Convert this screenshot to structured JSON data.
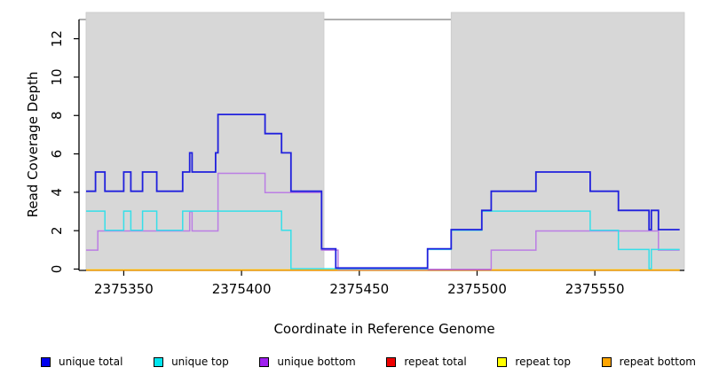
{
  "figure": {
    "ylabel": "Read Coverage Depth",
    "xlabel": "Coordinate in Reference Genome"
  },
  "legend": {
    "items": [
      {
        "label": "unique total",
        "color": "#0000ee"
      },
      {
        "label": "unique top",
        "color": "#00e5ee"
      },
      {
        "label": "unique bottom",
        "color": "#a020f0"
      },
      {
        "label": "repeat total",
        "color": "#ee0000"
      },
      {
        "label": "repeat top",
        "color": "#ffff00"
      },
      {
        "label": "repeat bottom",
        "color": "#ffa500"
      }
    ]
  },
  "chart_data": {
    "type": "line",
    "step": true,
    "title": "",
    "xlabel": "Coordinate in Reference Genome",
    "ylabel": "Read Coverage Depth",
    "xlim": [
      2375331,
      2375588
    ],
    "ylim": [
      0,
      13
    ],
    "xticks": [
      2375350,
      2375400,
      2375450,
      2375500,
      2375550
    ],
    "yticks": [
      0,
      2,
      4,
      6,
      8,
      10,
      12
    ],
    "grid": false,
    "legend_position": "bottom",
    "shaded_regions": [
      {
        "from": 2375334,
        "to": 2375435,
        "color": "#d7d7d7"
      },
      {
        "from": 2375489,
        "to": 2375588,
        "color": "#d7d7d7"
      }
    ],
    "series": [
      {
        "name": "unique total",
        "color": "#2020dd",
        "legend_color": "#0000ee",
        "end": 2375586,
        "points": [
          [
            2375334,
            4
          ],
          [
            2375338,
            5
          ],
          [
            2375342,
            4
          ],
          [
            2375350,
            5
          ],
          [
            2375353,
            4
          ],
          [
            2375358,
            5
          ],
          [
            2375364,
            4
          ],
          [
            2375375,
            5
          ],
          [
            2375378,
            6
          ],
          [
            2375379,
            5
          ],
          [
            2375389,
            6
          ],
          [
            2375390,
            8
          ],
          [
            2375410,
            7
          ],
          [
            2375417,
            6
          ],
          [
            2375421,
            4
          ],
          [
            2375434,
            1
          ],
          [
            2375440,
            0
          ],
          [
            2375479,
            1
          ],
          [
            2375489,
            2
          ],
          [
            2375502,
            3
          ],
          [
            2375506,
            4
          ],
          [
            2375525,
            5
          ],
          [
            2375548,
            4
          ],
          [
            2375560,
            3
          ],
          [
            2375573,
            2
          ],
          [
            2375574,
            3
          ],
          [
            2375577,
            2
          ]
        ]
      },
      {
        "name": "unique top",
        "color": "#35dfe9",
        "legend_color": "#00e5ee",
        "end": 2375586,
        "points": [
          [
            2375334,
            3
          ],
          [
            2375342,
            2
          ],
          [
            2375350,
            3
          ],
          [
            2375353,
            2
          ],
          [
            2375358,
            3
          ],
          [
            2375364,
            2
          ],
          [
            2375375,
            3
          ],
          [
            2375417,
            2
          ],
          [
            2375421,
            0
          ],
          [
            2375479,
            1
          ],
          [
            2375489,
            2
          ],
          [
            2375502,
            3
          ],
          [
            2375548,
            2
          ],
          [
            2375560,
            1
          ],
          [
            2375573,
            0
          ],
          [
            2375574,
            1
          ]
        ]
      },
      {
        "name": "unique bottom",
        "color": "#bb7de4",
        "legend_color": "#a020f0",
        "end": 2375586,
        "points": [
          [
            2375334,
            1
          ],
          [
            2375339,
            2
          ],
          [
            2375378,
            3
          ],
          [
            2375379,
            2
          ],
          [
            2375390,
            5
          ],
          [
            2375410,
            4
          ],
          [
            2375434,
            1
          ],
          [
            2375441,
            0
          ],
          [
            2375506,
            1
          ],
          [
            2375525,
            2
          ],
          [
            2375577,
            1
          ]
        ]
      },
      {
        "name": "repeat total",
        "color": "#d23b4e",
        "legend_color": "#ee0000",
        "end": 2375506,
        "points": [
          [
            2375479,
            0
          ]
        ]
      },
      {
        "name": "repeat top",
        "color": "#ffff00",
        "legend_color": "#ffff00",
        "end": 2375586,
        "points": [
          [
            2375334,
            0
          ]
        ]
      },
      {
        "name": "repeat bottom",
        "color": "#ffa500",
        "legend_color": "#ffa500",
        "end": 2375586,
        "points": [
          [
            2375334,
            0
          ]
        ]
      }
    ]
  }
}
